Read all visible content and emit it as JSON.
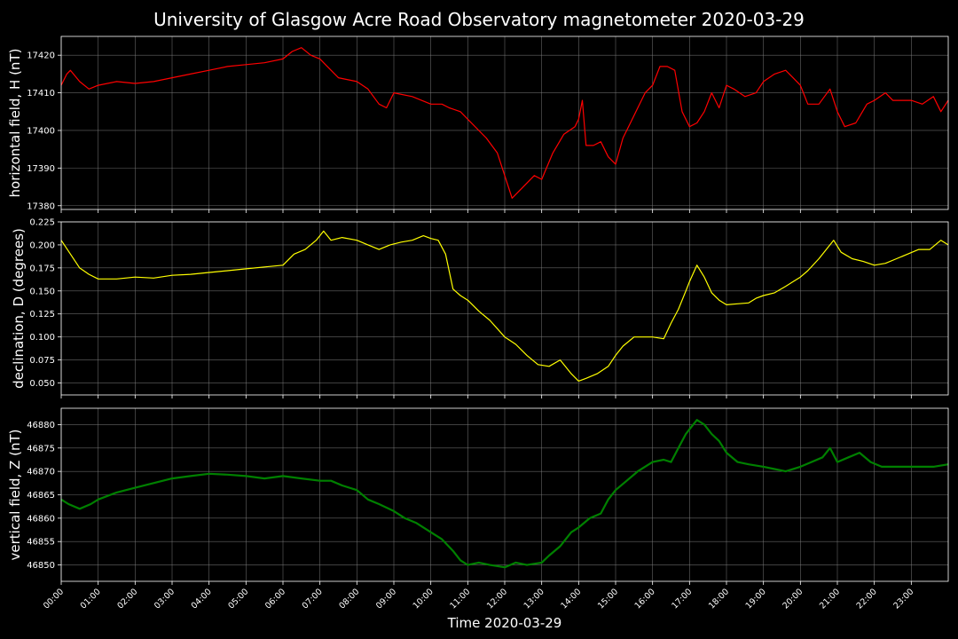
{
  "figure": {
    "title": "University of Glasgow Acre Road Observatory magnetometer 2020-03-29",
    "xlabel": "Time 2020-03-29",
    "background": "#000000",
    "text_color": "#ffffff",
    "grid_color": "#808080"
  },
  "chart_data": [
    {
      "type": "line",
      "title": "",
      "xlabel": "",
      "ylabel": "horizontal field, H (nT)",
      "series": [
        {
          "name": "",
          "color": "#ff0000",
          "line_width": 1.2,
          "x": [
            0,
            0.15,
            0.25,
            0.5,
            0.75,
            1,
            1.5,
            2,
            2.5,
            3,
            3.5,
            4,
            4.5,
            5,
            5.5,
            6,
            6.25,
            6.5,
            6.75,
            7,
            7.2,
            7.5,
            8,
            8.3,
            8.6,
            8.8,
            9,
            9.5,
            10,
            10.3,
            10.5,
            10.8,
            11,
            11.3,
            11.5,
            11.8,
            12,
            12.2,
            12.5,
            12.8,
            13,
            13.3,
            13.6,
            13.9,
            14,
            14.1,
            14.2,
            14.4,
            14.6,
            14.8,
            15,
            15.2,
            15.4,
            15.6,
            15.8,
            16,
            16.2,
            16.4,
            16.6,
            16.8,
            17,
            17.2,
            17.4,
            17.6,
            17.8,
            18,
            18.2,
            18.5,
            18.8,
            19,
            19.3,
            19.6,
            19.8,
            20,
            20.2,
            20.5,
            20.8,
            21,
            21.2,
            21.5,
            21.8,
            22,
            22.3,
            22.5,
            22.8,
            23,
            23.3,
            23.6,
            23.8,
            24
          ],
          "y": [
            17412,
            17415,
            17416,
            17413,
            17411,
            17412,
            17413,
            17412.5,
            17413,
            17414,
            17415,
            17416,
            17417,
            17417.5,
            17418,
            17419,
            17421,
            17422,
            17420,
            17419,
            17417,
            17414,
            17413,
            17411,
            17407,
            17406,
            17410,
            17409,
            17407,
            17407,
            17406,
            17405,
            17403,
            17400,
            17398,
            17394,
            17388,
            17382,
            17385,
            17388,
            17387,
            17394,
            17399,
            17401,
            17403,
            17408,
            17396,
            17396,
            17397,
            17393,
            17391,
            17398,
            17402,
            17406,
            17410,
            17412,
            17417,
            17417,
            17416,
            17405,
            17401,
            17402,
            17405,
            17410,
            17406,
            17412,
            17411,
            17409,
            17410,
            17413,
            17415,
            17416,
            17414,
            17412,
            17407,
            17407,
            17411,
            17405,
            17401,
            17402,
            17407,
            17408,
            17410,
            17408,
            17408,
            17408,
            17407,
            17409,
            17405,
            17408
          ]
        }
      ],
      "ylim": [
        17379,
        17425
      ],
      "yticks": [
        "17380",
        "17390",
        "17400",
        "17410",
        "17420"
      ],
      "grid": true
    },
    {
      "type": "line",
      "title": "",
      "xlabel": "",
      "ylabel": "declination, D (degrees)",
      "series": [
        {
          "name": "",
          "color": "#ffff00",
          "line_width": 1.2,
          "x": [
            0,
            0.25,
            0.5,
            0.75,
            1,
            1.5,
            2,
            2.5,
            3,
            3.5,
            4,
            4.5,
            5,
            5.5,
            6,
            6.3,
            6.6,
            6.9,
            7.1,
            7.3,
            7.6,
            8,
            8.3,
            8.6,
            8.9,
            9.2,
            9.5,
            9.8,
            10,
            10.2,
            10.4,
            10.6,
            10.8,
            11,
            11.3,
            11.6,
            12,
            12.3,
            12.6,
            12.9,
            13.2,
            13.5,
            13.8,
            14,
            14.2,
            14.5,
            14.8,
            15,
            15.2,
            15.5,
            15.8,
            16,
            16.3,
            16.5,
            16.7,
            16.9,
            17,
            17.2,
            17.4,
            17.6,
            17.8,
            18,
            18.3,
            18.6,
            18.8,
            19,
            19.3,
            19.6,
            19.8,
            20,
            20.2,
            20.5,
            20.7,
            20.9,
            21.1,
            21.4,
            21.7,
            22,
            22.3,
            22.6,
            22.9,
            23.2,
            23.5,
            23.8,
            24
          ],
          "y": [
            0.205,
            0.19,
            0.175,
            0.168,
            0.163,
            0.163,
            0.165,
            0.164,
            0.167,
            0.168,
            0.17,
            0.172,
            0.174,
            0.176,
            0.178,
            0.19,
            0.195,
            0.205,
            0.215,
            0.205,
            0.208,
            0.205,
            0.2,
            0.195,
            0.2,
            0.203,
            0.205,
            0.21,
            0.207,
            0.205,
            0.19,
            0.152,
            0.145,
            0.14,
            0.128,
            0.118,
            0.1,
            0.092,
            0.08,
            0.07,
            0.068,
            0.075,
            0.06,
            0.052,
            0.055,
            0.06,
            0.068,
            0.08,
            0.09,
            0.1,
            0.1,
            0.1,
            0.098,
            0.115,
            0.13,
            0.15,
            0.16,
            0.178,
            0.165,
            0.148,
            0.14,
            0.135,
            0.136,
            0.137,
            0.142,
            0.145,
            0.148,
            0.155,
            0.16,
            0.165,
            0.172,
            0.185,
            0.195,
            0.205,
            0.192,
            0.185,
            0.182,
            0.178,
            0.18,
            0.185,
            0.19,
            0.195,
            0.195,
            0.205,
            0.2
          ]
        }
      ],
      "ylim": [
        0.037,
        0.225
      ],
      "yticks": [
        "0.050",
        "0.075",
        "0.100",
        "0.125",
        "0.150",
        "0.175",
        "0.200",
        "0.225"
      ],
      "grid": true
    },
    {
      "type": "line",
      "title": "",
      "xlabel": "",
      "ylabel": "vertical field, Z (nT)",
      "series": [
        {
          "name": "",
          "color": "#008000",
          "line_width": 2.2,
          "x": [
            0,
            0.2,
            0.5,
            0.8,
            1,
            1.5,
            2,
            2.5,
            3,
            3.5,
            4,
            4.5,
            5,
            5.5,
            6,
            6.5,
            7,
            7.3,
            7.6,
            8,
            8.3,
            8.6,
            9,
            9.3,
            9.6,
            10,
            10.3,
            10.6,
            10.8,
            11,
            11.3,
            11.6,
            12,
            12.3,
            12.6,
            13,
            13.2,
            13.5,
            13.8,
            14,
            14.3,
            14.6,
            14.8,
            15,
            15.3,
            15.6,
            15.9,
            16,
            16.3,
            16.5,
            16.7,
            16.9,
            17,
            17.2,
            17.4,
            17.6,
            17.8,
            18,
            18.3,
            18.6,
            19,
            19.3,
            19.6,
            20,
            20.3,
            20.6,
            20.8,
            21,
            21.3,
            21.6,
            21.9,
            22.2,
            22.5,
            22.8,
            23,
            23.3,
            23.6,
            24
          ],
          "y": [
            46864,
            46863,
            46862,
            46863,
            46864,
            46865.5,
            46866.5,
            46867.5,
            46868.5,
            46869,
            46869.5,
            46869.3,
            46869,
            46868.5,
            46869,
            46868.5,
            46868,
            46868,
            46867,
            46866,
            46864,
            46863,
            46861.5,
            46860,
            46859,
            46857,
            46855.5,
            46853,
            46851,
            46850,
            46850.5,
            46850,
            46849.5,
            46850.5,
            46850,
            46850.5,
            46852,
            46854,
            46857,
            46858,
            46860,
            46861,
            46864,
            46866,
            46868,
            46870,
            46871.5,
            46872,
            46872.5,
            46872,
            46875,
            46878,
            46879,
            46881,
            46880,
            46878,
            46876.5,
            46874,
            46872,
            46871.5,
            46871,
            46870.5,
            46870,
            46871,
            46872,
            46873,
            46875,
            46872,
            46873,
            46874,
            46872,
            46871,
            46871,
            46871,
            46871,
            46871,
            46871,
            46871.5
          ]
        }
      ],
      "ylim": [
        46846.5,
        46883.5
      ],
      "yticks": [
        "46850",
        "46855",
        "46860",
        "46865",
        "46870",
        "46875",
        "46880"
      ],
      "grid": true
    }
  ],
  "xaxis": {
    "range": [
      0,
      24
    ],
    "ticks": [
      "00:00",
      "01:00",
      "02:00",
      "03:00",
      "04:00",
      "05:00",
      "06:00",
      "07:00",
      "08:00",
      "09:00",
      "10:00",
      "11:00",
      "12:00",
      "13:00",
      "14:00",
      "15:00",
      "16:00",
      "17:00",
      "18:00",
      "19:00",
      "20:00",
      "21:00",
      "22:00",
      "23:00"
    ]
  }
}
